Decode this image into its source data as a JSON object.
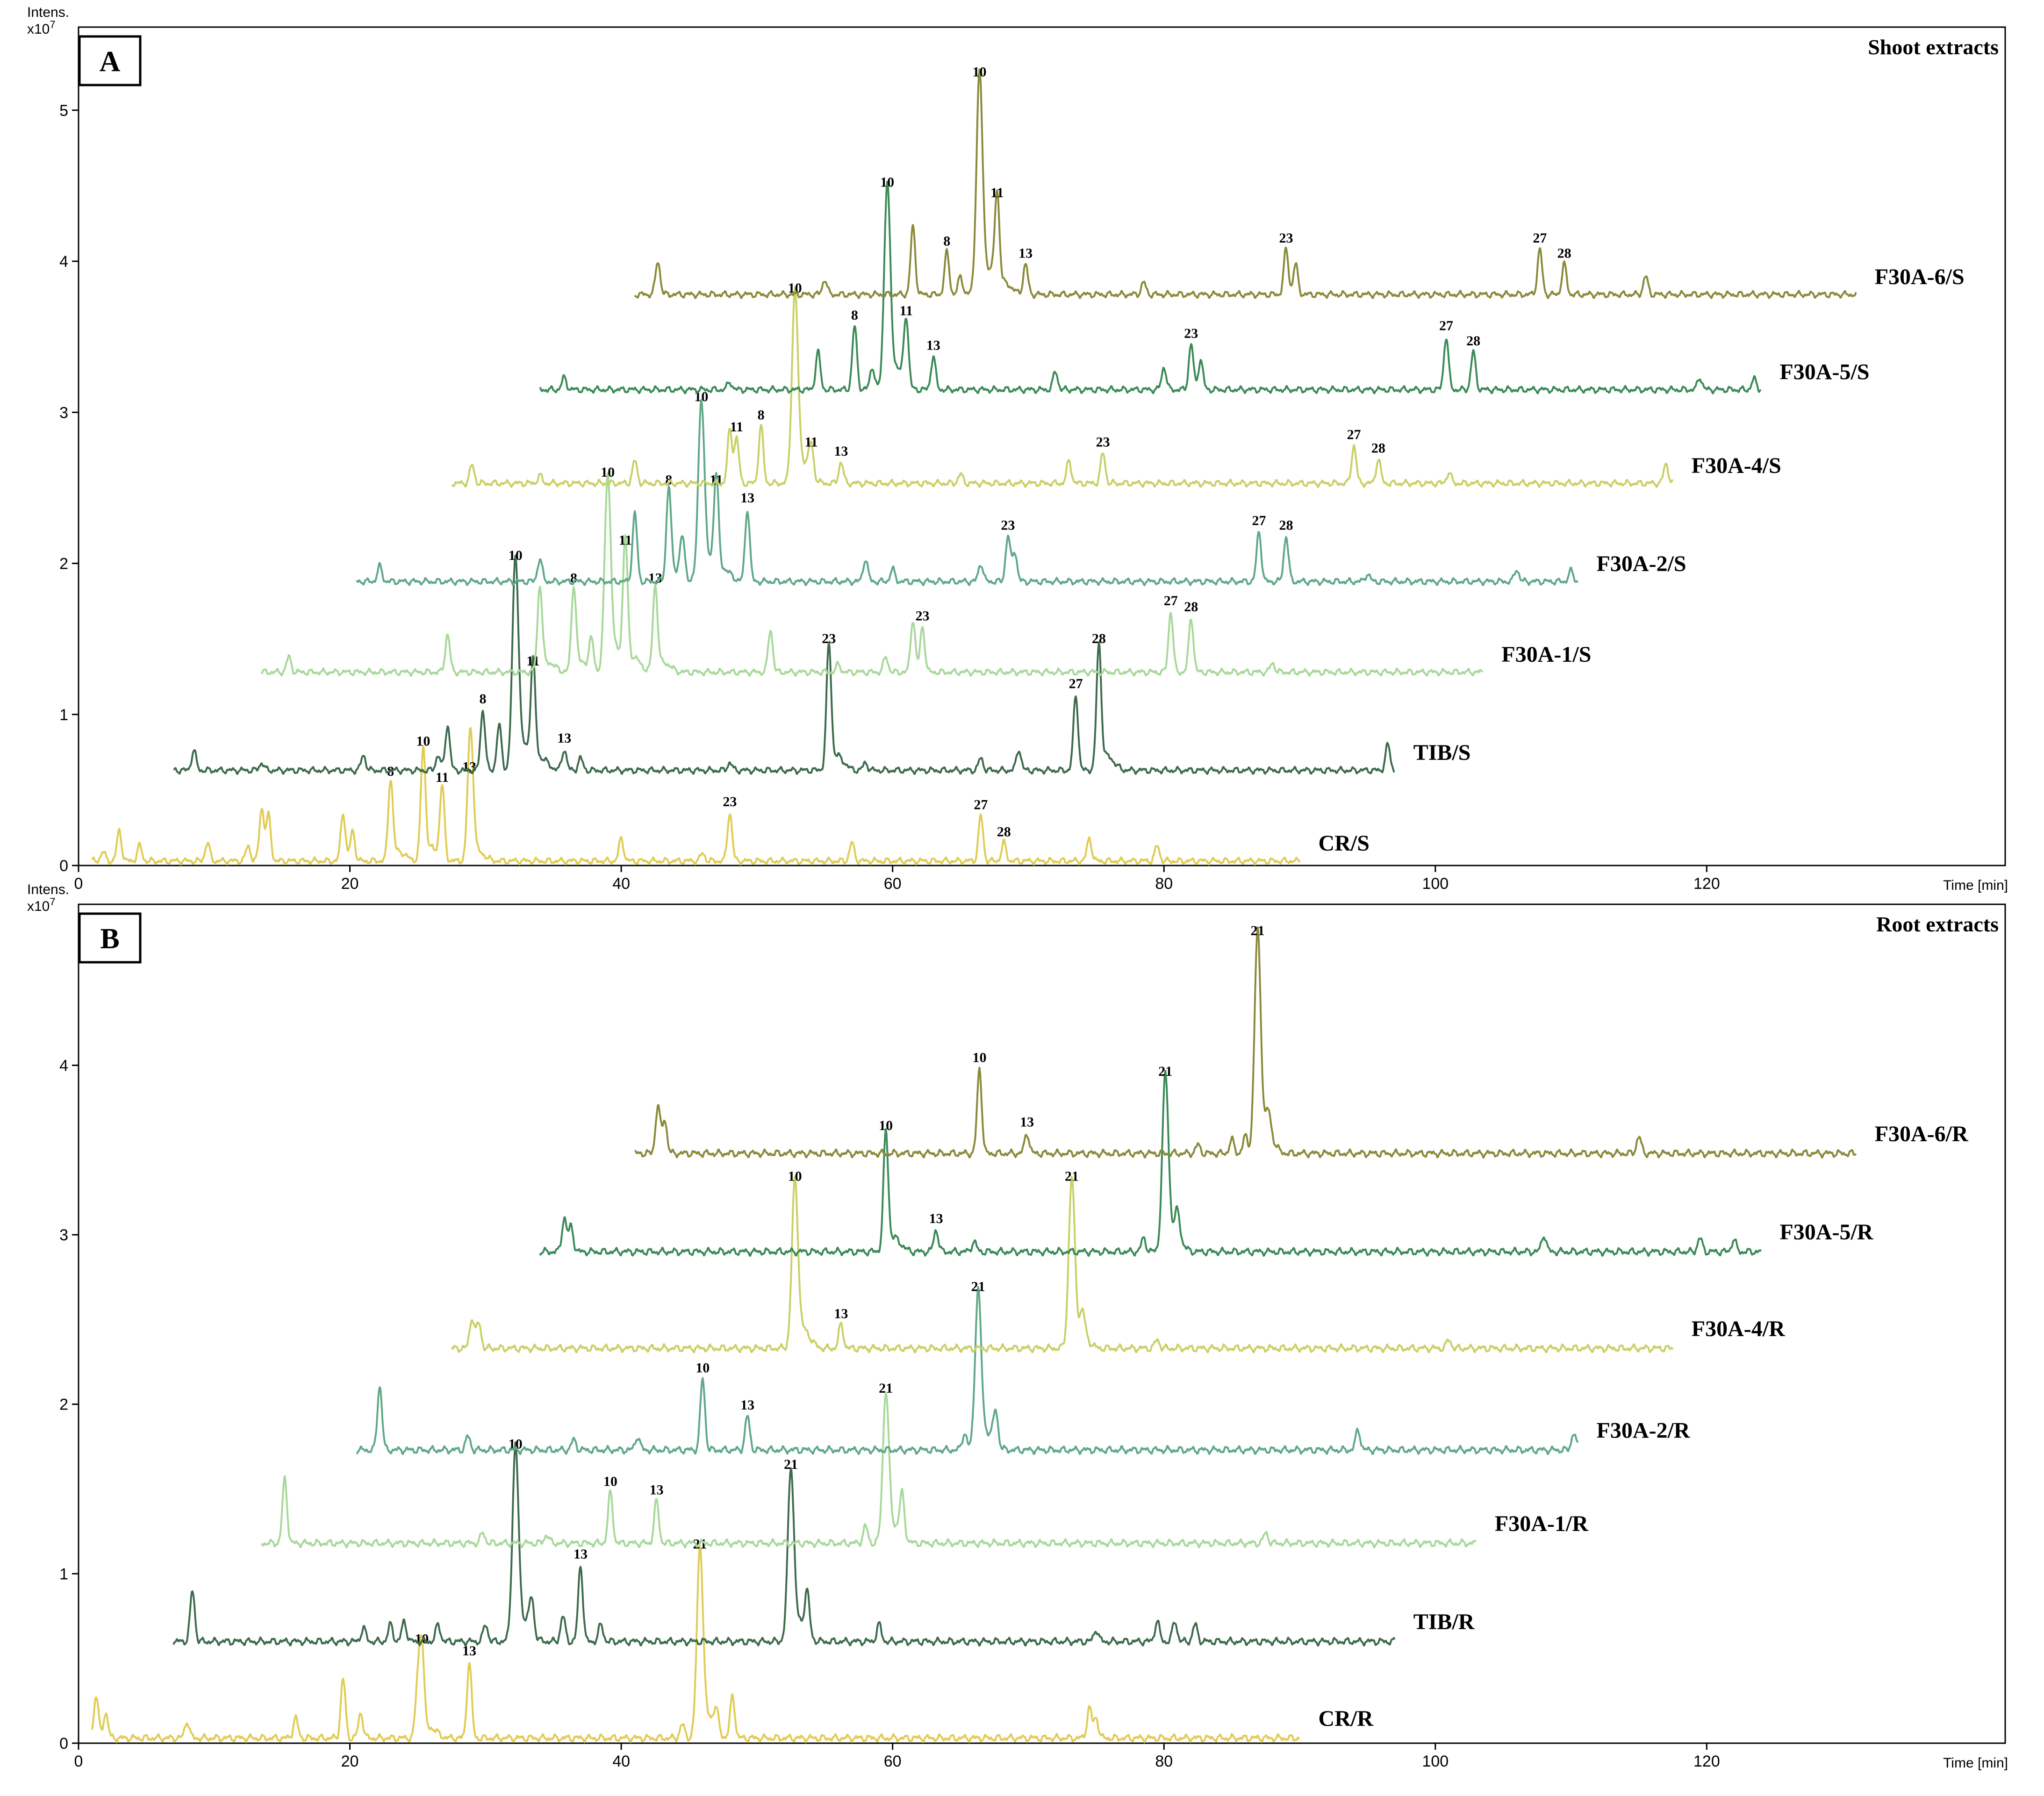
{
  "chart_data": [
    {
      "type": "line",
      "panel_label": "A",
      "title": "Shoot extracts",
      "ylabel": "Intens.",
      "y_unit": "x10^7",
      "y_unit_text": "x10",
      "y_unit_exp": "7",
      "xlabel": "Time [min]",
      "xlim": [
        0,
        142
      ],
      "ylim": [
        0,
        5.55
      ],
      "x_ticks": [
        0,
        20,
        40,
        60,
        80,
        100,
        120
      ],
      "y_ticks": [
        0,
        1,
        2,
        3,
        4,
        5
      ],
      "series": [
        {
          "name": "CR/S",
          "color": "#e0cc55",
          "t_start": 1,
          "t_end": 90,
          "baseline": 0.03,
          "peaks": [
            [
              1.8,
              0.06
            ],
            [
              3,
              0.2
            ],
            [
              4.5,
              0.1
            ],
            [
              9.5,
              0.12
            ],
            [
              12.5,
              0.1
            ],
            [
              13.5,
              0.35
            ],
            [
              14,
              0.3
            ],
            [
              19.5,
              0.32
            ],
            [
              20.2,
              0.2
            ],
            [
              23,
              0.52,
              "8"
            ],
            [
              25.4,
              0.72,
              "10"
            ],
            [
              26.8,
              0.48,
              "11"
            ],
            [
              28.8,
              0.55,
              "13"
            ],
            [
              29,
              0.45
            ],
            [
              40,
              0.15
            ],
            [
              46,
              0.05
            ],
            [
              48,
              0.32,
              "23"
            ],
            [
              57,
              0.12
            ],
            [
              66.5,
              0.3,
              "27"
            ],
            [
              68.2,
              0.12,
              "28"
            ],
            [
              74.5,
              0.15
            ],
            [
              79.5,
              0.1
            ]
          ]
        },
        {
          "name": "TIB/S",
          "color": "#3d6b4c",
          "t_start": 7,
          "t_end": 97,
          "baseline": 0.63,
          "peaks": [
            [
              8.5,
              0.13
            ],
            [
              13.5,
              0.05
            ],
            [
              21,
              0.1
            ],
            [
              26.5,
              0.1
            ],
            [
              27.2,
              0.3
            ],
            [
              29.8,
              0.4,
              "8"
            ],
            [
              31,
              0.3
            ],
            [
              32.2,
              1.35,
              "10"
            ],
            [
              33.5,
              0.65,
              "11"
            ],
            [
              35.8,
              0.14,
              "13"
            ],
            [
              37,
              0.08
            ],
            [
              48,
              0.05
            ],
            [
              55.3,
              0.8,
              "23"
            ],
            [
              58,
              0.05
            ],
            [
              66.5,
              0.08
            ],
            [
              69.3,
              0.14
            ],
            [
              73.5,
              0.5,
              "27"
            ],
            [
              75.2,
              0.8,
              "28"
            ],
            [
              96.5,
              0.17
            ]
          ]
        },
        {
          "name": "F30A-1/S",
          "color": "#a8d89a",
          "t_start": 13.5,
          "t_end": 103.5,
          "baseline": 1.28,
          "peaks": [
            [
              15.5,
              0.1
            ],
            [
              27.2,
              0.25
            ],
            [
              34,
              0.55
            ],
            [
              36.5,
              0.55,
              "8"
            ],
            [
              37.8,
              0.2
            ],
            [
              39,
              1.25,
              "10"
            ],
            [
              40.3,
              0.8,
              "11"
            ],
            [
              42.5,
              0.55,
              "13"
            ],
            [
              51,
              0.28
            ],
            [
              56,
              0.05
            ],
            [
              59.5,
              0.1
            ],
            [
              61.5,
              0.35
            ],
            [
              62.2,
              0.3,
              "23"
            ],
            [
              80.5,
              0.4,
              "27"
            ],
            [
              82,
              0.36,
              "28"
            ],
            [
              88,
              0.06
            ]
          ]
        },
        {
          "name": "F30A-2/S",
          "color": "#5fa888",
          "t_start": 20.5,
          "t_end": 110.5,
          "baseline": 1.88,
          "peaks": [
            [
              22.2,
              0.1
            ],
            [
              34,
              0.15
            ],
            [
              41,
              0.45
            ],
            [
              43.5,
              0.6,
              "8"
            ],
            [
              44.5,
              0.25
            ],
            [
              45.9,
              1.15,
              "10"
            ],
            [
              47,
              0.6,
              "11"
            ],
            [
              49.3,
              0.48,
              "13"
            ],
            [
              58,
              0.15
            ],
            [
              60,
              0.08
            ],
            [
              66.5,
              0.12
            ],
            [
              68.5,
              0.3,
              "23"
            ],
            [
              69,
              0.2
            ],
            [
              87,
              0.33,
              "27"
            ],
            [
              89,
              0.3,
              "28"
            ],
            [
              95,
              0.05
            ],
            [
              106,
              0.08
            ],
            [
              110,
              0.07
            ]
          ]
        },
        {
          "name": "F30A-4/S",
          "color": "#c9d066",
          "t_start": 27.5,
          "t_end": 117.5,
          "baseline": 2.53,
          "peaks": [
            [
              29,
              0.12
            ],
            [
              34,
              0.05
            ],
            [
              41,
              0.15
            ],
            [
              48,
              0.35
            ],
            [
              48.5,
              0.3,
              "11"
            ],
            [
              50.3,
              0.38,
              "8"
            ],
            [
              52.8,
              1.22,
              "10"
            ],
            [
              54,
              0.2,
              "11"
            ],
            [
              56.2,
              0.14,
              "13"
            ],
            [
              65,
              0.06
            ],
            [
              73,
              0.15
            ],
            [
              75.5,
              0.2,
              "23"
            ],
            [
              94,
              0.25,
              "27"
            ],
            [
              95.8,
              0.16,
              "28"
            ],
            [
              101,
              0.07
            ],
            [
              117,
              0.13
            ]
          ]
        },
        {
          "name": "F30A-5/S",
          "color": "#3b8a58",
          "t_start": 34,
          "t_end": 124,
          "baseline": 3.15,
          "peaks": [
            [
              35.8,
              0.08
            ],
            [
              48,
              0.05
            ],
            [
              54.5,
              0.25
            ],
            [
              57.2,
              0.42,
              "8"
            ],
            [
              58.5,
              0.15
            ],
            [
              59.6,
              1.3,
              "10"
            ],
            [
              61,
              0.45,
              "11"
            ],
            [
              63,
              0.22,
              "13"
            ],
            [
              72,
              0.12
            ],
            [
              80,
              0.15
            ],
            [
              82,
              0.3,
              "23"
            ],
            [
              82.7,
              0.2
            ],
            [
              100.8,
              0.35,
              "27"
            ],
            [
              102.8,
              0.25,
              "28"
            ],
            [
              119.5,
              0.08
            ],
            [
              123.5,
              0.07
            ]
          ]
        },
        {
          "name": "F30A-6/S",
          "color": "#8a8a3a",
          "t_start": 41,
          "t_end": 131,
          "baseline": 3.78,
          "peaks": [
            [
              42.7,
              0.22
            ],
            [
              55,
              0.1
            ],
            [
              61.5,
              0.45
            ],
            [
              64,
              0.28,
              "8"
            ],
            [
              65,
              0.12
            ],
            [
              66.4,
              1.4,
              "10"
            ],
            [
              67.7,
              0.6,
              "11"
            ],
            [
              69.8,
              0.2,
              "13"
            ],
            [
              78.5,
              0.08
            ],
            [
              89,
              0.3,
              "23"
            ],
            [
              89.7,
              0.2
            ],
            [
              107.7,
              0.3,
              "27"
            ],
            [
              109.5,
              0.2,
              "28"
            ],
            [
              115.5,
              0.12
            ]
          ]
        }
      ]
    },
    {
      "type": "line",
      "panel_label": "B",
      "title": "Root extracts",
      "ylabel": "Intens.",
      "y_unit": "x10^7",
      "y_unit_text": "x10",
      "y_unit_exp": "7",
      "xlabel": "Time [min]",
      "xlim": [
        0,
        142
      ],
      "ylim": [
        0,
        4.95
      ],
      "x_ticks": [
        0,
        20,
        40,
        60,
        80,
        100,
        120
      ],
      "y_ticks": [
        0,
        1,
        2,
        3,
        4
      ],
      "series": [
        {
          "name": "CR/R",
          "color": "#e0cc55",
          "t_start": 1,
          "t_end": 90,
          "baseline": 0.03,
          "peaks": [
            [
              1.3,
              0.25
            ],
            [
              2,
              0.15
            ],
            [
              8,
              0.1
            ],
            [
              16,
              0.12
            ],
            [
              19.5,
              0.35
            ],
            [
              20.8,
              0.15
            ],
            [
              25.3,
              0.52,
              "10"
            ],
            [
              25,
              0.3
            ],
            [
              28.8,
              0.45,
              "13"
            ],
            [
              44.5,
              0.08
            ],
            [
              45.8,
              1.08,
              "21"
            ],
            [
              47,
              0.12
            ],
            [
              48.2,
              0.25
            ],
            [
              74.5,
              0.18
            ],
            [
              75,
              0.12
            ]
          ]
        },
        {
          "name": "TIB/R",
          "color": "#3d6b4c",
          "t_start": 7,
          "t_end": 97,
          "baseline": 0.6,
          "peaks": [
            [
              8.4,
              0.3
            ],
            [
              21,
              0.08
            ],
            [
              23,
              0.1
            ],
            [
              24,
              0.12
            ],
            [
              26.5,
              0.1
            ],
            [
              30,
              0.1
            ],
            [
              32.2,
              1.1,
              "10"
            ],
            [
              33.4,
              0.2
            ],
            [
              35.7,
              0.15
            ],
            [
              37,
              0.45,
              "13"
            ],
            [
              38.5,
              0.1
            ],
            [
              52.5,
              0.98,
              "21"
            ],
            [
              53.7,
              0.25
            ],
            [
              59,
              0.1
            ],
            [
              75,
              0.07
            ],
            [
              79.5,
              0.12
            ],
            [
              80.8,
              0.12
            ],
            [
              82.3,
              0.1
            ]
          ]
        },
        {
          "name": "F30A-1/R",
          "color": "#a8d89a",
          "t_start": 13.5,
          "t_end": 103,
          "baseline": 1.18,
          "peaks": [
            [
              15.2,
              0.38
            ],
            [
              29.8,
              0.06
            ],
            [
              34.5,
              0.05
            ],
            [
              39.2,
              0.3,
              "10"
            ],
            [
              42.6,
              0.25,
              "13"
            ],
            [
              58,
              0.1
            ],
            [
              59.5,
              0.85,
              "21"
            ],
            [
              60.7,
              0.25
            ],
            [
              87.5,
              0.06
            ]
          ]
        },
        {
          "name": "F30A-2/R",
          "color": "#5fa888",
          "t_start": 20.5,
          "t_end": 110.5,
          "baseline": 1.73,
          "peaks": [
            [
              22.2,
              0.38
            ],
            [
              28.7,
              0.08
            ],
            [
              36.5,
              0.06
            ],
            [
              41.2,
              0.08
            ],
            [
              46,
              0.42,
              "10"
            ],
            [
              49.3,
              0.2,
              "13"
            ],
            [
              65.3,
              0.1
            ],
            [
              66.3,
              0.9,
              "21"
            ],
            [
              67.6,
              0.2
            ],
            [
              94.3,
              0.12
            ],
            [
              110.2,
              0.1
            ]
          ]
        },
        {
          "name": "F30A-4/R",
          "color": "#c9d066",
          "t_start": 27.5,
          "t_end": 117.5,
          "baseline": 2.33,
          "peaks": [
            [
              29,
              0.18
            ],
            [
              29.5,
              0.15
            ],
            [
              52.8,
              0.95,
              "10"
            ],
            [
              56.2,
              0.14,
              "13"
            ],
            [
              73.2,
              0.95,
              "21"
            ],
            [
              74,
              0.12
            ],
            [
              79.5,
              0.05
            ],
            [
              101,
              0.05
            ]
          ]
        },
        {
          "name": "F30A-5/R",
          "color": "#3b8a58",
          "t_start": 34,
          "t_end": 124,
          "baseline": 2.9,
          "peaks": [
            [
              35.8,
              0.2
            ],
            [
              36.3,
              0.15
            ],
            [
              59.5,
              0.68,
              "10"
            ],
            [
              63.2,
              0.13,
              "13"
            ],
            [
              66,
              0.06
            ],
            [
              78.5,
              0.08
            ],
            [
              80.1,
              1.0,
              "21"
            ],
            [
              81,
              0.15
            ],
            [
              108,
              0.1
            ],
            [
              119.5,
              0.08
            ],
            [
              122,
              0.07
            ]
          ]
        },
        {
          "name": "F30A-6/R",
          "color": "#8a8a3a",
          "t_start": 41,
          "t_end": 131,
          "baseline": 3.48,
          "peaks": [
            [
              42.7,
              0.28
            ],
            [
              43.2,
              0.2
            ],
            [
              66.4,
              0.5,
              "10"
            ],
            [
              69.9,
              0.12,
              "13"
            ],
            [
              82.5,
              0.05
            ],
            [
              85,
              0.08
            ],
            [
              86,
              0.1
            ],
            [
              86.9,
              1.25,
              "21"
            ],
            [
              87.7,
              0.12
            ],
            [
              115,
              0.1
            ]
          ]
        }
      ]
    }
  ]
}
